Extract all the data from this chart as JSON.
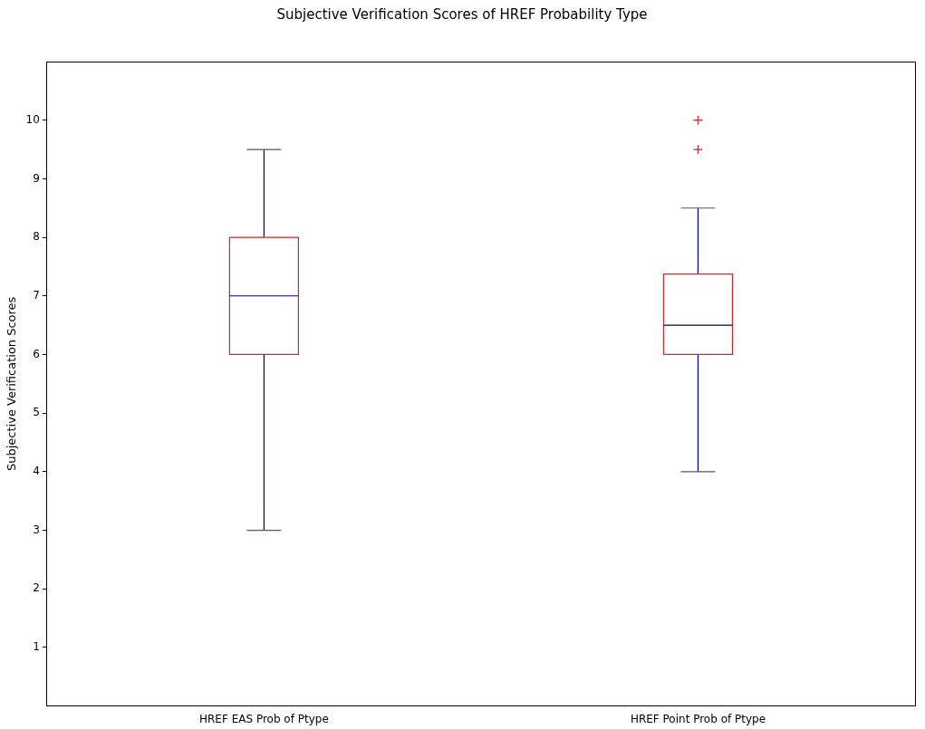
{
  "chart_data": {
    "type": "box",
    "title": "Subjective Verification Scores of HREF Probability Type",
    "ylabel": "Subjective Verification Scores",
    "categories": [
      "HREF EAS Prob of Ptype",
      "HREF Point Prob of Ptype"
    ],
    "boxes": [
      {
        "low": 3,
        "q1": 6,
        "median": 7,
        "q3": 8,
        "high": 9.5
      },
      {
        "low": 4,
        "q1": 6,
        "median": 6.5,
        "q3": 7.375,
        "high": 8.5,
        "outliers": [
          9.5,
          10
        ]
      }
    ],
    "color": "#d62728",
    "ylim": [
      0,
      11
    ],
    "yticks": [
      1,
      2,
      3,
      4,
      5,
      6,
      7,
      8,
      9,
      10
    ],
    "grid": false,
    "legend": false
  }
}
